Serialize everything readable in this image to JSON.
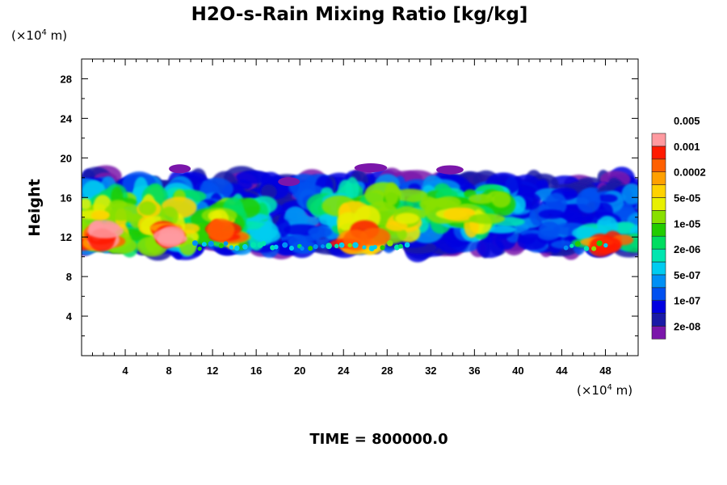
{
  "chart_data": {
    "type": "heatmap",
    "title": "H2O-s-Rain Mixing Ratio [kg/kg]",
    "ylabel": "Height",
    "x_unit": "(×10",
    "x_unit_exp": "4",
    "x_unit_tail": " m)",
    "y_unit": "(×10",
    "y_unit_exp": "4",
    "y_unit_tail": " m)",
    "xlim": [
      0,
      51
    ],
    "ylim": [
      0,
      30
    ],
    "xticks": [
      "4",
      "8",
      "12",
      "16",
      "20",
      "24",
      "28",
      "32",
      "36",
      "40",
      "44",
      "48"
    ],
    "xtick_values": [
      4,
      8,
      12,
      16,
      20,
      24,
      28,
      32,
      36,
      40,
      44,
      48
    ],
    "yticks": [
      "4",
      "8",
      "12",
      "16",
      "20",
      "24",
      "28"
    ],
    "ytick_values": [
      4,
      8,
      12,
      16,
      20,
      24,
      28
    ],
    "grid": false,
    "colorbar": {
      "placement": "right",
      "colors": [
        "#7b16aa",
        "#1a1aa6",
        "#0000e0",
        "#0050f0",
        "#0090f5",
        "#00ccf0",
        "#00e6b0",
        "#00dd60",
        "#22cc00",
        "#88e000",
        "#e8f000",
        "#ffd200",
        "#ffa000",
        "#ff6000",
        "#ff1a00",
        "#ff9aa0"
      ],
      "labels": [
        "2e-08",
        "1e-07",
        "5e-07",
        "2e-06",
        "1e-05",
        "5e-05",
        "0.0002",
        "0.001",
        "0.005"
      ]
    },
    "field_description_regions": [
      {
        "x_range": [
          0,
          51
        ],
        "z_range": [
          10.5,
          19.5
        ],
        "value_range": [
          "2e-08",
          "0.005"
        ]
      }
    ],
    "footer": "TIME = 800000.0"
  }
}
